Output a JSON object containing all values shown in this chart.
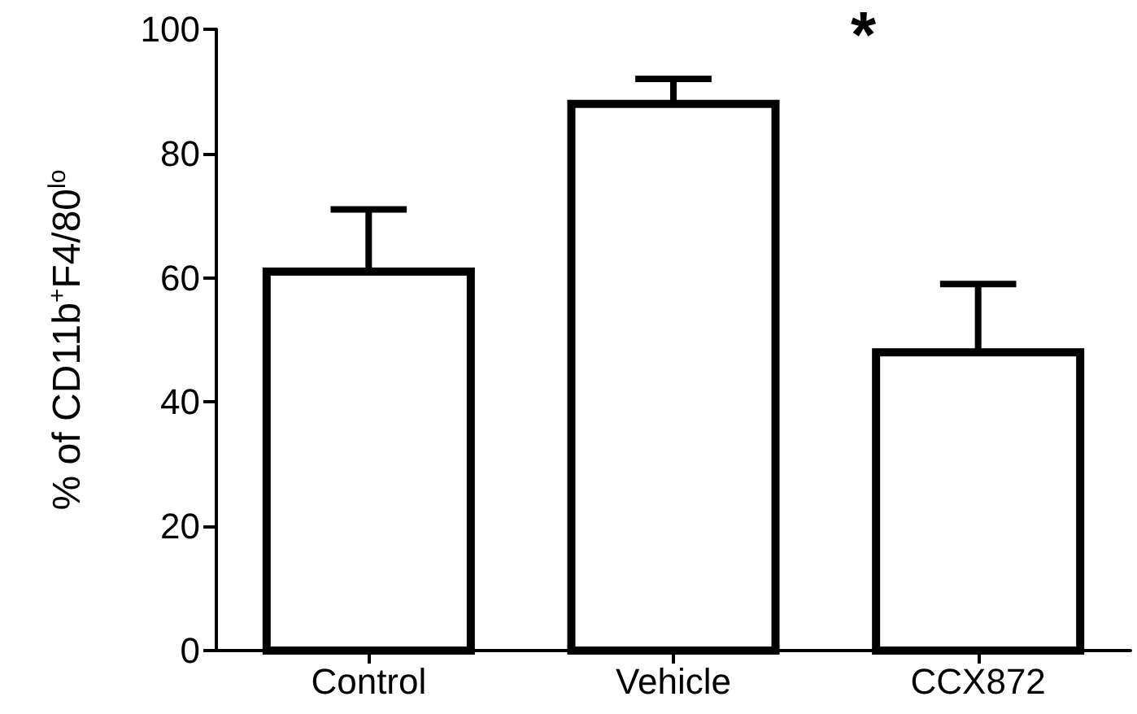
{
  "chart_data": {
    "type": "bar",
    "ylabel": "% of CD11b$^{+}$F4/80$^{lo}$",
    "categories": [
      "Control",
      "Vehicle",
      "CCX872"
    ],
    "values": [
      61,
      88,
      48
    ],
    "color": "#ffffff",
    "errors": [
      [
        61,
        71
      ],
      [
        88,
        92
      ],
      [
        48,
        59
      ]
    ],
    "ylim": [
      0,
      100
    ],
    "yticks": [
      0,
      20,
      40,
      60,
      80,
      100
    ],
    "grid": false,
    "annotations": [
      "*"
    ]
  }
}
